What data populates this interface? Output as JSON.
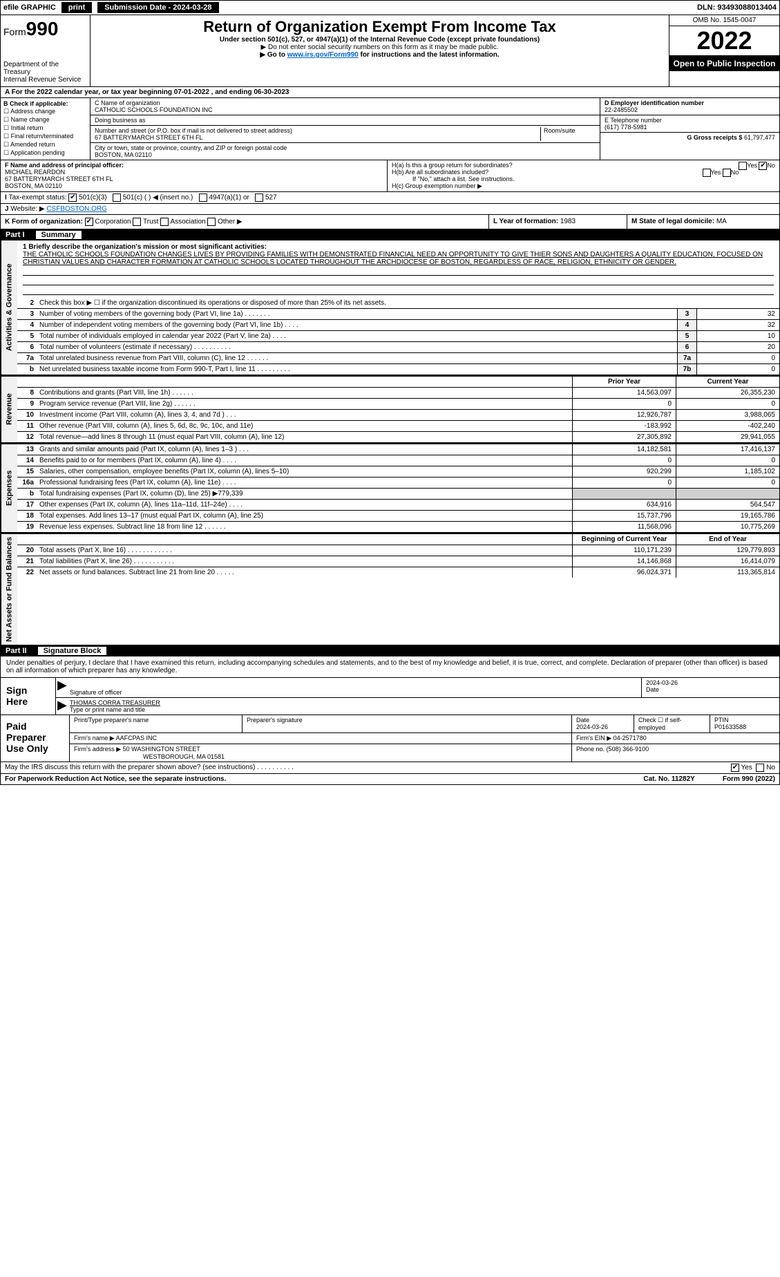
{
  "topbar": {
    "efile": "efile GRAPHIC",
    "print": "print",
    "subdate_label": "Submission Date - 2024-03-28",
    "dln": "DLN: 93493088013404"
  },
  "header": {
    "form_label": "Form",
    "form_num": "990",
    "dept": "Department of the Treasury",
    "irs": "Internal Revenue Service",
    "title": "Return of Organization Exempt From Income Tax",
    "sub1": "Under section 501(c), 527, or 4947(a)(1) of the Internal Revenue Code (except private foundations)",
    "sub2": "▶ Do not enter social security numbers on this form as it may be made public.",
    "sub3": "▶ Go to www.irs.gov/Form990 for instructions and the latest information.",
    "link": "www.irs.gov/Form990",
    "omb": "OMB No. 1545-0047",
    "year": "2022",
    "open": "Open to Public Inspection"
  },
  "taxyear": "For the 2022 calendar year, or tax year beginning 07-01-2022    , and ending 06-30-2023",
  "secA": "A",
  "secB": {
    "label": "B Check if applicable:",
    "items": [
      "Address change",
      "Name change",
      "Initial return",
      "Final return/terminated",
      "Amended return",
      "Application pending"
    ]
  },
  "secC": {
    "name_lbl": "C Name of organization",
    "name": "CATHOLIC SCHOOLS FOUNDATION INC",
    "dba_lbl": "Doing business as",
    "addr_lbl": "Number and street (or P.O. box if mail is not delivered to street address)",
    "room_lbl": "Room/suite",
    "addr": "67 BATTERYMARCH STREET 6TH FL",
    "city_lbl": "City or town, state or province, country, and ZIP or foreign postal code",
    "city": "BOSTON, MA  02110"
  },
  "secD": {
    "label": "D Employer identification number",
    "val": "22-2485502"
  },
  "secE": {
    "label": "E Telephone number",
    "val": "(617) 778-5981"
  },
  "secG": {
    "label": "G Gross receipts $",
    "val": "61,797,477"
  },
  "secF": {
    "label": "F  Name and address of principal officer:",
    "name": "MICHAEL REARDON",
    "addr1": "67 BATTERYMARCH STREET 6TH FL",
    "addr2": "BOSTON, MA  02110"
  },
  "secH": {
    "a": "H(a)  Is this a group return for subordinates?",
    "b": "H(b)  Are all subordinates included?",
    "bnote": "If \"No,\" attach a list. See instructions.",
    "c": "H(c)  Group exemption number ▶",
    "yes": "Yes",
    "no": "No"
  },
  "secI": {
    "label": "Tax-exempt status:",
    "opts": [
      "501(c)(3)",
      "501(c) (   ) ◀ (insert no.)",
      "4947(a)(1) or",
      "527"
    ]
  },
  "secJ": {
    "label": "Website: ▶",
    "val": "CSFBOSTON.ORG"
  },
  "secK": {
    "label": "K Form of organization:",
    "opts": [
      "Corporation",
      "Trust",
      "Association",
      "Other ▶"
    ]
  },
  "secL": {
    "label": "L Year of formation:",
    "val": "1983"
  },
  "secM": {
    "label": "M State of legal domicile:",
    "val": "MA"
  },
  "part1": {
    "num": "Part I",
    "title": "Summary"
  },
  "mission": {
    "lbl": "1  Briefly describe the organization's mission or most significant activities:",
    "text": "THE CATHOLIC SCHOOLS FOUNDATION CHANGES LIVES BY PROVIDING FAMILIES WITH DEMONSTRATED FINANCIAL NEED AN OPPORTUNITY TO GIVE THIER SONS AND DAUGHTERS A QUALITY EDUCATION, FOCUSED ON CHRISTIAN VALUES AND CHARACTER FORMATION AT CATHOLIC SCHOOLS LOCATED THROUGHOUT THE ARCHDIOCESE OF BOSTON, REGARDLESS OF RACE, RELIGION, ETHNICITY OR GENDER."
  },
  "gov": {
    "tab": "Activities & Governance",
    "lines": [
      {
        "n": "2",
        "d": "Check this box ▶ ☐  if the organization discontinued its operations or disposed of more than 25% of its net assets.",
        "box": "",
        "v": ""
      },
      {
        "n": "3",
        "d": "Number of voting members of the governing body (Part VI, line 1a)  .    .    .    .    .    .    .",
        "box": "3",
        "v": "32"
      },
      {
        "n": "4",
        "d": "Number of independent voting members of the governing body (Part VI, line 1b)   .    .    .    .",
        "box": "4",
        "v": "32"
      },
      {
        "n": "5",
        "d": "Total number of individuals employed in calendar year 2022 (Part V, line 2a)   .    .    .    .",
        "box": "5",
        "v": "10"
      },
      {
        "n": "6",
        "d": "Total number of volunteers (estimate if necessary)    .    .    .    .    .    .    .    .    .    .",
        "box": "6",
        "v": "20"
      },
      {
        "n": "7a",
        "d": "Total unrelated business revenue from Part VIII, column (C), line 12    .    .    .    .    .    .",
        "box": "7a",
        "v": "0"
      },
      {
        "n": "b",
        "d": "Net unrelated business taxable income from Form 990-T, Part I, line 11    .    .    .    .    .    .    .    .    .",
        "box": "7b",
        "v": "0"
      }
    ]
  },
  "cols": {
    "prior": "Prior Year",
    "current": "Current Year"
  },
  "revenue": {
    "tab": "Revenue",
    "lines": [
      {
        "n": "8",
        "d": "Contributions and grants (Part VIII, line 1h)   .    .    .    .    .    .",
        "c1": "14,563,097",
        "c2": "26,355,230"
      },
      {
        "n": "9",
        "d": "Program service revenue (Part VIII, line 2g)   .    .    .    .    .    .",
        "c1": "0",
        "c2": "0"
      },
      {
        "n": "10",
        "d": "Investment income (Part VIII, column (A), lines 3, 4, and 7d )   .    .    .",
        "c1": "12,926,787",
        "c2": "3,988,065"
      },
      {
        "n": "11",
        "d": "Other revenue (Part VIII, column (A), lines 5, 6d, 8c, 9c, 10c, and 11e)",
        "c1": "-183,992",
        "c2": "-402,240"
      },
      {
        "n": "12",
        "d": "Total revenue—add lines 8 through 11 (must equal Part VIII, column (A), line 12)",
        "c1": "27,305,892",
        "c2": "29,941,055"
      }
    ]
  },
  "expenses": {
    "tab": "Expenses",
    "lines": [
      {
        "n": "13",
        "d": "Grants and similar amounts paid (Part IX, column (A), lines 1–3 )   .    .    .",
        "c1": "14,182,581",
        "c2": "17,416,137"
      },
      {
        "n": "14",
        "d": "Benefits paid to or for members (Part IX, column (A), line 4)   .    .    .    .",
        "c1": "0",
        "c2": "0"
      },
      {
        "n": "15",
        "d": "Salaries, other compensation, employee benefits (Part IX, column (A), lines 5–10)",
        "c1": "920,299",
        "c2": "1,185,102"
      },
      {
        "n": "16a",
        "d": "Professional fundraising fees (Part IX, column (A), line 11e)   .    .    .    .",
        "c1": "0",
        "c2": "0"
      },
      {
        "n": "b",
        "d": "Total fundraising expenses (Part IX, column (D), line 25) ▶779,339",
        "c1": "",
        "c2": "",
        "shade": true
      },
      {
        "n": "17",
        "d": "Other expenses (Part IX, column (A), lines 11a–11d, 11f–24e)   .    .    .    .",
        "c1": "634,916",
        "c2": "564,547"
      },
      {
        "n": "18",
        "d": "Total expenses. Add lines 13–17 (must equal Part IX, column (A), line 25)",
        "c1": "15,737,796",
        "c2": "19,165,786"
      },
      {
        "n": "19",
        "d": "Revenue less expenses. Subtract line 18 from line 12   .    .    .    .    .    .",
        "c1": "11,568,096",
        "c2": "10,775,269"
      }
    ]
  },
  "cols2": {
    "begin": "Beginning of Current Year",
    "end": "End of Year"
  },
  "net": {
    "tab": "Net Assets or Fund Balances",
    "lines": [
      {
        "n": "20",
        "d": "Total assets (Part X, line 16)  .    .    .    .    .    .    .    .    .    .    .    .",
        "c1": "110,171,239",
        "c2": "129,779,893"
      },
      {
        "n": "21",
        "d": "Total liabilities (Part X, line 26)  .    .    .    .    .    .    .    .    .    .    .",
        "c1": "14,146,868",
        "c2": "16,414,079"
      },
      {
        "n": "22",
        "d": "Net assets or fund balances. Subtract line 21 from line 20   .    .    .    .    .",
        "c1": "96,024,371",
        "c2": "113,365,814"
      }
    ]
  },
  "part2": {
    "num": "Part II",
    "title": "Signature Block"
  },
  "sig": {
    "intro": "Under penalties of perjury, I declare that I have examined this return, including accompanying schedules and statements, and to the best of my knowledge and belief, it is true, correct, and complete. Declaration of preparer (other than officer) is based on all information of which preparer has any knowledge.",
    "sign_here": "Sign Here",
    "sig_lbl": "Signature of officer",
    "date_lbl": "Date",
    "date": "2024-03-26",
    "name": "THOMAS CORRA  TREASURER",
    "name_lbl": "Type or print name and title"
  },
  "paid": {
    "label": "Paid Preparer Use Only",
    "h": [
      "Print/Type preparer's name",
      "Preparer's signature",
      "Date",
      "Check ☐ if self-employed",
      "PTIN"
    ],
    "date": "2024-03-26",
    "ptin": "P01633588",
    "firm_lbl": "Firm's name    ▶",
    "firm": "AAFCPAS INC",
    "ein_lbl": "Firm's EIN ▶",
    "ein": "04-2571780",
    "addr_lbl": "Firm's address ▶",
    "addr1": "50 WASHINGTON STREET",
    "addr2": "WESTBOROUGH, MA  01581",
    "phone_lbl": "Phone no.",
    "phone": "(508) 366-9100"
  },
  "may": {
    "q": "May the IRS discuss this return with the preparer shown above? (see instructions)    .    .    .    .    .    .    .    .    .    .",
    "yes": "Yes",
    "no": "No"
  },
  "footer": {
    "pra": "For Paperwork Reduction Act Notice, see the separate instructions.",
    "cat": "Cat. No. 11282Y",
    "form": "Form 990 (2022)"
  },
  "colors": {
    "black": "#000000",
    "white": "#ffffff",
    "link": "#0066cc",
    "shade": "#d0d0d0",
    "tab_bg": "#f0f0f0"
  }
}
